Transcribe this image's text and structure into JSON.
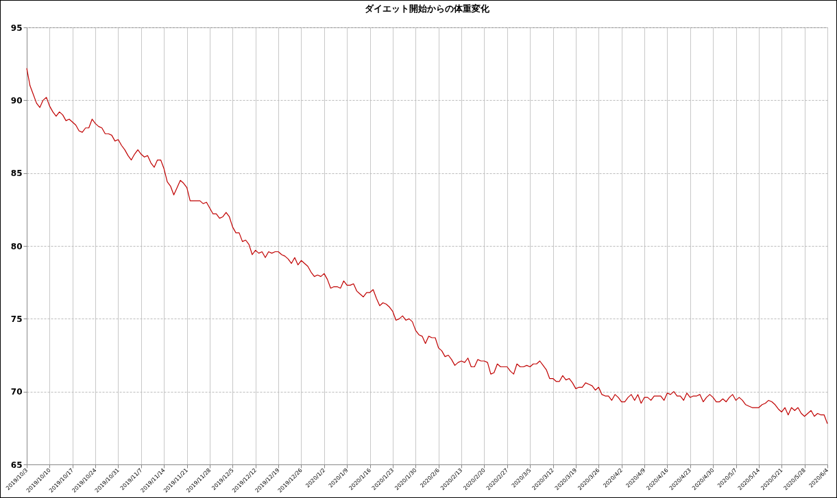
{
  "chart_data": {
    "type": "line",
    "title": "ダイエット開始からの体重変化",
    "x": [
      "2019-10-03",
      "2019-10-04",
      "2019-10-05",
      "2019-10-06",
      "2019-10-07",
      "2019-10-08",
      "2019-10-09",
      "2019-10-10",
      "2019-10-11",
      "2019-10-12",
      "2019-10-13",
      "2019-10-14",
      "2019-10-15",
      "2019-10-16",
      "2019-10-17",
      "2019-10-18",
      "2019-10-19",
      "2019-10-20",
      "2019-10-21",
      "2019-10-22",
      "2019-10-23",
      "2019-10-24",
      "2019-10-25",
      "2019-10-26",
      "2019-10-27",
      "2019-10-28",
      "2019-10-29",
      "2019-10-30",
      "2019-10-31",
      "2019-11-01",
      "2019-11-02",
      "2019-11-03",
      "2019-11-04",
      "2019-11-05",
      "2019-11-06",
      "2019-11-07",
      "2019-11-08",
      "2019-11-09",
      "2019-11-10",
      "2019-11-11",
      "2019-11-12",
      "2019-11-13",
      "2019-11-14",
      "2019-11-15",
      "2019-11-16",
      "2019-11-17",
      "2019-11-18",
      "2019-11-19",
      "2019-11-20",
      "2019-11-21",
      "2019-11-22",
      "2019-11-23",
      "2019-11-24",
      "2019-11-25",
      "2019-11-26",
      "2019-11-27",
      "2019-11-28",
      "2019-11-29",
      "2019-11-30",
      "2019-12-01",
      "2019-12-02",
      "2019-12-03",
      "2019-12-04",
      "2019-12-05",
      "2019-12-06",
      "2019-12-07",
      "2019-12-08",
      "2019-12-09",
      "2019-12-10",
      "2019-12-11",
      "2019-12-12",
      "2019-12-13",
      "2019-12-14",
      "2019-12-15",
      "2019-12-16",
      "2019-12-17",
      "2019-12-18",
      "2019-12-19",
      "2019-12-20",
      "2019-12-21",
      "2019-12-22",
      "2019-12-23",
      "2019-12-24",
      "2019-12-25",
      "2019-12-26",
      "2019-12-27",
      "2019-12-28",
      "2019-12-29",
      "2019-12-30",
      "2019-12-31",
      "2020-01-01",
      "2020-01-02",
      "2020-01-03",
      "2020-01-04",
      "2020-01-05",
      "2020-01-06",
      "2020-01-07",
      "2020-01-08",
      "2020-01-09",
      "2020-01-10",
      "2020-01-11",
      "2020-01-12",
      "2020-01-13",
      "2020-01-14",
      "2020-01-15",
      "2020-01-16",
      "2020-01-17",
      "2020-01-18",
      "2020-01-19",
      "2020-01-20",
      "2020-01-21",
      "2020-01-22",
      "2020-01-23",
      "2020-01-24",
      "2020-01-25",
      "2020-01-26",
      "2020-01-27",
      "2020-01-28",
      "2020-01-29",
      "2020-01-30",
      "2020-01-31",
      "2020-02-01",
      "2020-02-02",
      "2020-02-03",
      "2020-02-04",
      "2020-02-05",
      "2020-02-06",
      "2020-02-07",
      "2020-02-08",
      "2020-02-09",
      "2020-02-10",
      "2020-02-11",
      "2020-02-12",
      "2020-02-13",
      "2020-02-14",
      "2020-02-15",
      "2020-02-16",
      "2020-02-17",
      "2020-02-18",
      "2020-02-19",
      "2020-02-20",
      "2020-02-21",
      "2020-02-22",
      "2020-02-23",
      "2020-02-24",
      "2020-02-25",
      "2020-02-26",
      "2020-02-27",
      "2020-02-28",
      "2020-02-29",
      "2020-03-01",
      "2020-03-02",
      "2020-03-03",
      "2020-03-04",
      "2020-03-05",
      "2020-03-06",
      "2020-03-07",
      "2020-03-08",
      "2020-03-09",
      "2020-03-10",
      "2020-03-11",
      "2020-03-12",
      "2020-03-13",
      "2020-03-14",
      "2020-03-15",
      "2020-03-16",
      "2020-03-17",
      "2020-03-18",
      "2020-03-19",
      "2020-03-20",
      "2020-03-21",
      "2020-03-22",
      "2020-03-23",
      "2020-03-24",
      "2020-03-25",
      "2020-03-26",
      "2020-03-27",
      "2020-03-28",
      "2020-03-29",
      "2020-03-30",
      "2020-03-31",
      "2020-04-01",
      "2020-04-02",
      "2020-04-03",
      "2020-04-04",
      "2020-04-05",
      "2020-04-06",
      "2020-04-07",
      "2020-04-08",
      "2020-04-09",
      "2020-04-10",
      "2020-04-11",
      "2020-04-12",
      "2020-04-13",
      "2020-04-14",
      "2020-04-15",
      "2020-04-16",
      "2020-04-17",
      "2020-04-18",
      "2020-04-19",
      "2020-04-20",
      "2020-04-21",
      "2020-04-22",
      "2020-04-23",
      "2020-04-24",
      "2020-04-25",
      "2020-04-26",
      "2020-04-27",
      "2020-04-28",
      "2020-04-29",
      "2020-04-30",
      "2020-05-01",
      "2020-05-02",
      "2020-05-03",
      "2020-05-04",
      "2020-05-05",
      "2020-05-06",
      "2020-05-07",
      "2020-05-08",
      "2020-05-09",
      "2020-05-10",
      "2020-05-11",
      "2020-05-12",
      "2020-05-13",
      "2020-05-14",
      "2020-05-15",
      "2020-05-16",
      "2020-05-17",
      "2020-05-18",
      "2020-05-19",
      "2020-05-20",
      "2020-05-21",
      "2020-05-22",
      "2020-05-23",
      "2020-05-24",
      "2020-05-25",
      "2020-05-26",
      "2020-05-27",
      "2020-05-28",
      "2020-05-29",
      "2020-05-30",
      "2020-05-31",
      "2020-06-01",
      "2020-06-02",
      "2020-06-03",
      "2020-06-04"
    ],
    "series": [
      {
        "color": "#c00000",
        "values": [
          92.2,
          91.0,
          90.4,
          89.8,
          89.5,
          90.0,
          90.2,
          89.6,
          89.2,
          88.9,
          89.2,
          89.0,
          88.6,
          88.7,
          88.5,
          88.3,
          87.9,
          87.8,
          88.1,
          88.1,
          88.7,
          88.4,
          88.2,
          88.1,
          87.7,
          87.7,
          87.6,
          87.2,
          87.3,
          86.9,
          86.6,
          86.2,
          85.9,
          86.3,
          86.6,
          86.3,
          86.1,
          86.2,
          85.7,
          85.4,
          85.9,
          85.9,
          85.3,
          84.4,
          84.1,
          83.5,
          84.0,
          84.5,
          84.3,
          84.0,
          83.1,
          83.1,
          83.1,
          83.1,
          82.9,
          83.0,
          82.6,
          82.2,
          82.2,
          81.9,
          82.0,
          82.3,
          82.0,
          81.3,
          80.9,
          80.9,
          80.3,
          80.4,
          80.1,
          79.4,
          79.7,
          79.5,
          79.6,
          79.2,
          79.6,
          79.5,
          79.6,
          79.6,
          79.4,
          79.3,
          79.1,
          78.8,
          79.2,
          78.7,
          79.0,
          78.8,
          78.6,
          78.2,
          77.9,
          78.0,
          77.9,
          78.1,
          77.7,
          77.1,
          77.2,
          77.2,
          77.1,
          77.6,
          77.3,
          77.3,
          77.4,
          76.9,
          76.7,
          76.5,
          76.8,
          76.8,
          77.0,
          76.4,
          75.9,
          76.1,
          76.0,
          75.8,
          75.5,
          74.9,
          75.0,
          75.2,
          74.9,
          75.0,
          74.8,
          74.2,
          73.9,
          73.8,
          73.3,
          73.8,
          73.7,
          73.7,
          73.0,
          72.8,
          72.4,
          72.5,
          72.2,
          71.8,
          72.0,
          72.1,
          72.0,
          72.3,
          71.7,
          71.7,
          72.2,
          72.1,
          72.1,
          72.0,
          71.2,
          71.3,
          71.9,
          71.7,
          71.7,
          71.7,
          71.4,
          71.2,
          71.9,
          71.7,
          71.7,
          71.8,
          71.7,
          71.9,
          71.9,
          72.1,
          71.8,
          71.5,
          70.9,
          70.9,
          70.7,
          70.7,
          71.1,
          70.8,
          70.9,
          70.6,
          70.2,
          70.3,
          70.3,
          70.6,
          70.5,
          70.4,
          70.1,
          70.3,
          69.8,
          69.7,
          69.7,
          69.4,
          69.8,
          69.6,
          69.3,
          69.3,
          69.6,
          69.8,
          69.4,
          69.8,
          69.2,
          69.6,
          69.6,
          69.4,
          69.7,
          69.7,
          69.7,
          69.4,
          69.9,
          69.8,
          70.0,
          69.7,
          69.7,
          69.4,
          69.9,
          69.6,
          69.7,
          69.7,
          69.8,
          69.3,
          69.6,
          69.8,
          69.6,
          69.3,
          69.3,
          69.5,
          69.3,
          69.6,
          69.8,
          69.4,
          69.6,
          69.4,
          69.1,
          69.0,
          68.9,
          68.9,
          68.9,
          69.1,
          69.2,
          69.4,
          69.3,
          69.1,
          68.8,
          68.6,
          68.9,
          68.4,
          68.9,
          68.7,
          68.9,
          68.5,
          68.3,
          68.5,
          68.7,
          68.3,
          68.5,
          68.4,
          68.4,
          67.8
        ]
      }
    ],
    "xlim": [
      "2019-10-03",
      "2020-06-04"
    ],
    "xticks": [
      {
        "value": "2019-10-03",
        "label": "2019/10/3"
      },
      {
        "value": "2019-10-10",
        "label": "2019/10/10"
      },
      {
        "value": "2019-10-17",
        "label": "2019/10/17"
      },
      {
        "value": "2019-10-24",
        "label": "2019/10/24"
      },
      {
        "value": "2019-10-31",
        "label": "2019/10/31"
      },
      {
        "value": "2019-11-07",
        "label": "2019/11/7"
      },
      {
        "value": "2019-11-14",
        "label": "2019/11/14"
      },
      {
        "value": "2019-11-21",
        "label": "2019/11/21"
      },
      {
        "value": "2019-11-28",
        "label": "2019/11/28"
      },
      {
        "value": "2019-12-05",
        "label": "2019/12/5"
      },
      {
        "value": "2019-12-12",
        "label": "2019/12/12"
      },
      {
        "value": "2019-12-19",
        "label": "2019/12/19"
      },
      {
        "value": "2019-12-26",
        "label": "2019/12/26"
      },
      {
        "value": "2020-01-02",
        "label": "2020/1/2"
      },
      {
        "value": "2020-01-09",
        "label": "2020/1/9"
      },
      {
        "value": "2020-01-16",
        "label": "2020/1/16"
      },
      {
        "value": "2020-01-23",
        "label": "2020/1/23"
      },
      {
        "value": "2020-01-30",
        "label": "2020/1/30"
      },
      {
        "value": "2020-02-06",
        "label": "2020/2/6"
      },
      {
        "value": "2020-02-13",
        "label": "2020/2/13"
      },
      {
        "value": "2020-02-20",
        "label": "2020/2/20"
      },
      {
        "value": "2020-02-27",
        "label": "2020/2/27"
      },
      {
        "value": "2020-03-05",
        "label": "2020/3/5"
      },
      {
        "value": "2020-03-12",
        "label": "2020/3/12"
      },
      {
        "value": "2020-03-19",
        "label": "2020/3/19"
      },
      {
        "value": "2020-03-26",
        "label": "2020/3/26"
      },
      {
        "value": "2020-04-02",
        "label": "2020/4/2"
      },
      {
        "value": "2020-04-09",
        "label": "2020/4/9"
      },
      {
        "value": "2020-04-16",
        "label": "2020/4/16"
      },
      {
        "value": "2020-04-23",
        "label": "2020/4/23"
      },
      {
        "value": "2020-04-30",
        "label": "2020/4/30"
      },
      {
        "value": "2020-05-07",
        "label": "2020/5/7"
      },
      {
        "value": "2020-05-14",
        "label": "2020/5/14"
      },
      {
        "value": "2020-05-21",
        "label": "2020/5/21"
      },
      {
        "value": "2020-05-28",
        "label": "2020/5/28"
      },
      {
        "value": "2020-06-04",
        "label": "2020/6/4"
      }
    ],
    "ylim": [
      65,
      95
    ],
    "yticks": [
      65,
      70,
      75,
      80,
      85,
      90,
      95
    ],
    "grid": true,
    "line_style": "solid"
  }
}
